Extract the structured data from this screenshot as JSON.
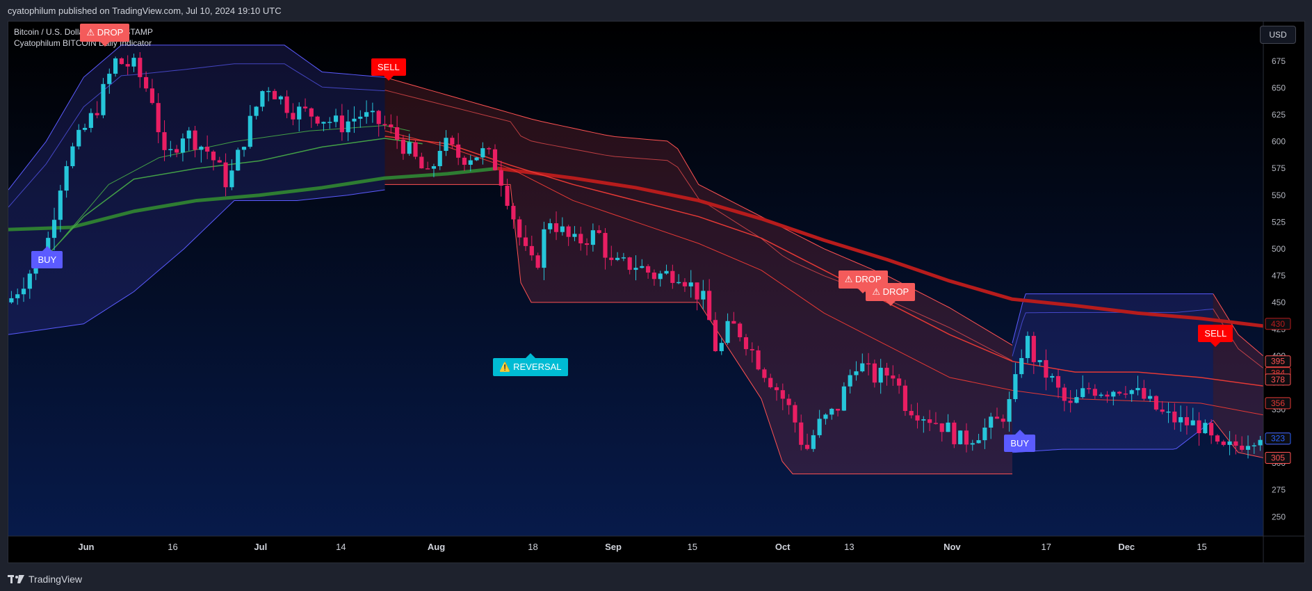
{
  "header": {
    "published": "cyatophilum published on TradingView.com, Jul 10, 2024 19:10 UTC"
  },
  "legend": {
    "symbol": "Bitcoin / U.S. Dollar · 1D · BITSTAMP",
    "indicator": "Cyatophilum BITCOIN Daily Indicator"
  },
  "currency_label": "USD",
  "footer": {
    "brand": "TradingView"
  },
  "colors": {
    "background": "#000000",
    "bull": "#26c6da",
    "bear": "#e91e63",
    "blue_band": "#5b5bff",
    "red_band": "#ff5252",
    "green_ma": "#2e7d32",
    "red_ma": "#b71c1c"
  },
  "chart_data": {
    "type": "candlestick",
    "y_ticks": [
      250,
      275,
      300,
      325,
      350,
      375,
      400,
      425,
      450,
      475,
      500,
      525,
      550,
      575,
      600,
      625,
      650,
      675,
      700
    ],
    "ylim": [
      232,
      712
    ],
    "x_ticks": [
      {
        "label": "Jun",
        "x": 0.062
      },
      {
        "label": "16",
        "x": 0.131
      },
      {
        "label": "Jul",
        "x": 0.201
      },
      {
        "label": "14",
        "x": 0.265
      },
      {
        "label": "Aug",
        "x": 0.341
      },
      {
        "label": "18",
        "x": 0.418
      },
      {
        "label": "Sep",
        "x": 0.482
      },
      {
        "label": "15",
        "x": 0.545
      },
      {
        "label": "Oct",
        "x": 0.617
      },
      {
        "label": "13",
        "x": 0.67
      },
      {
        "label": "Nov",
        "x": 0.752
      },
      {
        "label": "17",
        "x": 0.827
      },
      {
        "label": "Dec",
        "x": 0.891
      },
      {
        "label": "15",
        "x": 0.951
      }
    ],
    "price_labels": [
      {
        "value": 430,
        "color": "#b71c1c"
      },
      {
        "value": 395,
        "color": "#ff5252"
      },
      {
        "value": 384,
        "color": "#e53935"
      },
      {
        "value": 378,
        "color": "#ff5252"
      },
      {
        "value": 356,
        "color": "#e53935"
      },
      {
        "value": 323,
        "color": "#ff5252"
      },
      {
        "value": 323,
        "color": "#2962ff"
      },
      {
        "value": 305,
        "color": "#ff5252"
      },
      {
        "value": 305,
        "color": "#ff5252"
      }
    ],
    "signals": [
      {
        "label": "⚠ DROP",
        "kind": "drop",
        "dir": "down",
        "x": 0.077,
        "price": 688
      },
      {
        "label": "SELL",
        "kind": "sell",
        "dir": "down",
        "x": 0.303,
        "price": 656
      },
      {
        "label": "BUY",
        "kind": "buy",
        "dir": "up",
        "x": 0.031,
        "price": 503
      },
      {
        "label": "⚠️ REVERSAL",
        "kind": "rev",
        "dir": "up",
        "x": 0.416,
        "price": 403
      },
      {
        "label": "⚠ DROP",
        "kind": "drop",
        "dir": "down",
        "x": 0.681,
        "price": 458
      },
      {
        "label": "⚠ DROP",
        "kind": "drop",
        "dir": "down",
        "x": 0.703,
        "price": 446
      },
      {
        "label": "BUY",
        "kind": "buy",
        "dir": "up",
        "x": 0.806,
        "price": 332
      },
      {
        "label": "SELL",
        "kind": "sell",
        "dir": "down",
        "x": 0.962,
        "price": 408
      }
    ],
    "key_points": [
      {
        "x": 0.0,
        "p": 450
      },
      {
        "x": 0.03,
        "p": 500
      },
      {
        "x": 0.045,
        "p": 580
      },
      {
        "x": 0.07,
        "p": 630
      },
      {
        "x": 0.085,
        "p": 675
      },
      {
        "x": 0.1,
        "p": 670
      },
      {
        "x": 0.115,
        "p": 640
      },
      {
        "x": 0.125,
        "p": 580
      },
      {
        "x": 0.14,
        "p": 610
      },
      {
        "x": 0.16,
        "p": 590
      },
      {
        "x": 0.175,
        "p": 560
      },
      {
        "x": 0.19,
        "p": 610
      },
      {
        "x": 0.205,
        "p": 655
      },
      {
        "x": 0.225,
        "p": 630
      },
      {
        "x": 0.245,
        "p": 625
      },
      {
        "x": 0.265,
        "p": 615
      },
      {
        "x": 0.28,
        "p": 625
      },
      {
        "x": 0.3,
        "p": 615
      },
      {
        "x": 0.32,
        "p": 590
      },
      {
        "x": 0.335,
        "p": 565
      },
      {
        "x": 0.345,
        "p": 600
      },
      {
        "x": 0.36,
        "p": 585
      },
      {
        "x": 0.38,
        "p": 590
      },
      {
        "x": 0.39,
        "p": 575
      },
      {
        "x": 0.4,
        "p": 540
      },
      {
        "x": 0.41,
        "p": 500
      },
      {
        "x": 0.42,
        "p": 480
      },
      {
        "x": 0.43,
        "p": 530
      },
      {
        "x": 0.45,
        "p": 505
      },
      {
        "x": 0.47,
        "p": 515
      },
      {
        "x": 0.48,
        "p": 485
      },
      {
        "x": 0.5,
        "p": 485
      },
      {
        "x": 0.515,
        "p": 475
      },
      {
        "x": 0.535,
        "p": 478
      },
      {
        "x": 0.555,
        "p": 450
      },
      {
        "x": 0.565,
        "p": 400
      },
      {
        "x": 0.575,
        "p": 430
      },
      {
        "x": 0.585,
        "p": 420
      },
      {
        "x": 0.6,
        "p": 390
      },
      {
        "x": 0.615,
        "p": 365
      },
      {
        "x": 0.625,
        "p": 345
      },
      {
        "x": 0.635,
        "p": 310
      },
      {
        "x": 0.645,
        "p": 335
      },
      {
        "x": 0.66,
        "p": 350
      },
      {
        "x": 0.675,
        "p": 395
      },
      {
        "x": 0.69,
        "p": 380
      },
      {
        "x": 0.705,
        "p": 385
      },
      {
        "x": 0.715,
        "p": 355
      },
      {
        "x": 0.73,
        "p": 345
      },
      {
        "x": 0.745,
        "p": 335
      },
      {
        "x": 0.76,
        "p": 320
      },
      {
        "x": 0.775,
        "p": 330
      },
      {
        "x": 0.79,
        "p": 340
      },
      {
        "x": 0.8,
        "p": 360
      },
      {
        "x": 0.81,
        "p": 420
      },
      {
        "x": 0.82,
        "p": 390
      },
      {
        "x": 0.83,
        "p": 380
      },
      {
        "x": 0.845,
        "p": 350
      },
      {
        "x": 0.86,
        "p": 370
      },
      {
        "x": 0.875,
        "p": 368
      },
      {
        "x": 0.89,
        "p": 372
      },
      {
        "x": 0.905,
        "p": 360
      },
      {
        "x": 0.92,
        "p": 345
      },
      {
        "x": 0.935,
        "p": 338
      },
      {
        "x": 0.95,
        "p": 335
      },
      {
        "x": 0.965,
        "p": 310
      },
      {
        "x": 0.975,
        "p": 315
      },
      {
        "x": 1.0,
        "p": 330
      }
    ],
    "bands": [
      {
        "color": "blue",
        "from": 0.0,
        "to": 0.3,
        "upper": [
          [
            0.0,
            555
          ],
          [
            0.03,
            600
          ],
          [
            0.06,
            660
          ],
          [
            0.09,
            690
          ],
          [
            0.14,
            690
          ],
          [
            0.22,
            690
          ],
          [
            0.25,
            665
          ],
          [
            0.3,
            660
          ]
        ],
        "lower": [
          [
            0.0,
            420
          ],
          [
            0.06,
            430
          ],
          [
            0.1,
            460
          ],
          [
            0.14,
            500
          ],
          [
            0.18,
            545
          ],
          [
            0.23,
            545
          ],
          [
            0.27,
            550
          ],
          [
            0.3,
            555
          ]
        ]
      },
      {
        "color": "red",
        "from": 0.3,
        "to": 0.8,
        "upper": [
          [
            0.3,
            660
          ],
          [
            0.36,
            640
          ],
          [
            0.42,
            620
          ],
          [
            0.48,
            605
          ],
          [
            0.53,
            600
          ],
          [
            0.55,
            560
          ],
          [
            0.6,
            530
          ],
          [
            0.65,
            500
          ],
          [
            0.7,
            475
          ],
          [
            0.75,
            445
          ],
          [
            0.8,
            410
          ]
        ],
        "lower": [
          [
            0.3,
            560
          ],
          [
            0.4,
            560
          ],
          [
            0.41,
            450
          ],
          [
            0.55,
            450
          ],
          [
            0.6,
            360
          ],
          [
            0.62,
            290
          ],
          [
            0.7,
            290
          ],
          [
            0.75,
            290
          ],
          [
            0.8,
            290
          ]
        ]
      },
      {
        "color": "blue",
        "from": 0.8,
        "to": 0.96,
        "upper": [
          [
            0.8,
            412
          ],
          [
            0.81,
            458
          ],
          [
            0.96,
            458
          ]
        ],
        "lower": [
          [
            0.8,
            310
          ],
          [
            0.84,
            313
          ],
          [
            0.93,
            313
          ],
          [
            0.96,
            340
          ]
        ]
      },
      {
        "color": "red",
        "from": 0.96,
        "to": 1.0,
        "upper": [
          [
            0.96,
            458
          ],
          [
            0.98,
            420
          ],
          [
            1.0,
            400
          ]
        ],
        "lower": [
          [
            0.96,
            340
          ],
          [
            0.98,
            310
          ],
          [
            1.0,
            305
          ]
        ]
      }
    ],
    "ma": [
      {
        "name": "",
        "color": "#2e7d32",
        "width": 5,
        "pts": [
          [
            0.0,
            518
          ],
          [
            0.05,
            520
          ],
          [
            0.1,
            535
          ],
          [
            0.15,
            545
          ],
          [
            0.2,
            550
          ],
          [
            0.25,
            557
          ],
          [
            0.3,
            566
          ],
          [
            0.35,
            570
          ],
          [
            0.39,
            575
          ]
        ]
      },
      {
        "name": "",
        "color": "#43a047",
        "width": 1.5,
        "pts": [
          [
            0.02,
            480
          ],
          [
            0.06,
            530
          ],
          [
            0.1,
            565
          ],
          [
            0.15,
            575
          ],
          [
            0.2,
            582
          ],
          [
            0.25,
            595
          ],
          [
            0.3,
            603
          ],
          [
            0.33,
            598
          ]
        ]
      },
      {
        "name": "",
        "color": "#43a047",
        "width": 1,
        "pts": [
          [
            0.04,
            505
          ],
          [
            0.08,
            560
          ],
          [
            0.12,
            585
          ],
          [
            0.18,
            600
          ],
          [
            0.24,
            610
          ],
          [
            0.3,
            615
          ],
          [
            0.32,
            610
          ]
        ]
      },
      {
        "name": "",
        "color": "#b71c1c",
        "width": 5,
        "pts": [
          [
            0.39,
            575
          ],
          [
            0.45,
            566
          ],
          [
            0.5,
            557
          ],
          [
            0.55,
            545
          ],
          [
            0.6,
            528
          ],
          [
            0.65,
            508
          ],
          [
            0.7,
            490
          ],
          [
            0.75,
            470
          ],
          [
            0.8,
            453
          ],
          [
            0.85,
            447
          ],
          [
            0.9,
            440
          ],
          [
            0.95,
            435
          ],
          [
            1.0,
            428
          ]
        ]
      },
      {
        "name": "",
        "color": "#e53935",
        "width": 1.5,
        "pts": [
          [
            0.3,
            605
          ],
          [
            0.35,
            598
          ],
          [
            0.4,
            578
          ],
          [
            0.45,
            560
          ],
          [
            0.5,
            545
          ],
          [
            0.55,
            530
          ],
          [
            0.6,
            510
          ],
          [
            0.65,
            480
          ],
          [
            0.7,
            450
          ],
          [
            0.75,
            420
          ],
          [
            0.8,
            395
          ],
          [
            0.85,
            385
          ],
          [
            0.9,
            385
          ],
          [
            0.95,
            380
          ],
          [
            1.0,
            372
          ]
        ]
      },
      {
        "name": "",
        "color": "#e53935",
        "width": 1,
        "pts": [
          [
            0.3,
            610
          ],
          [
            0.35,
            595
          ],
          [
            0.4,
            575
          ],
          [
            0.45,
            545
          ],
          [
            0.5,
            525
          ],
          [
            0.55,
            505
          ],
          [
            0.6,
            480
          ],
          [
            0.65,
            440
          ],
          [
            0.7,
            410
          ],
          [
            0.75,
            380
          ],
          [
            0.8,
            368
          ],
          [
            0.85,
            360
          ],
          [
            0.9,
            358
          ],
          [
            0.95,
            356
          ],
          [
            1.0,
            345
          ]
        ]
      }
    ]
  }
}
